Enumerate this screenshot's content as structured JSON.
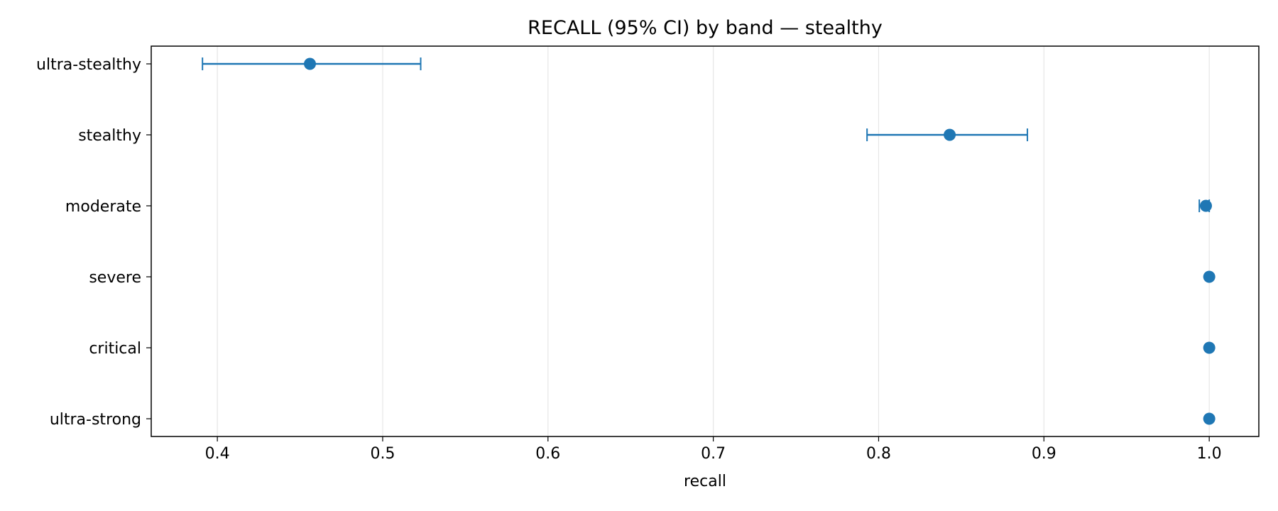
{
  "chart_data": {
    "type": "scatter",
    "title": "RECALL (95% CI) by band — stealthy",
    "xlabel": "recall",
    "ylabel": "",
    "xlim": [
      0.36,
      1.03
    ],
    "xticks": [
      0.4,
      0.5,
      0.6,
      0.7,
      0.8,
      0.9,
      1.0
    ],
    "xtick_labels": [
      "0.4",
      "0.5",
      "0.6",
      "0.7",
      "0.8",
      "0.9",
      "1.0"
    ],
    "grid": "vertical",
    "legend": "none",
    "color": "#1f77b4",
    "categories": [
      "ultra-stealthy",
      "stealthy",
      "moderate",
      "severe",
      "critical",
      "ultra-strong"
    ],
    "points": [
      {
        "band": "ultra-stealthy",
        "value": 0.456,
        "ci_low": 0.391,
        "ci_high": 0.523
      },
      {
        "band": "stealthy",
        "value": 0.843,
        "ci_low": 0.793,
        "ci_high": 0.89
      },
      {
        "band": "moderate",
        "value": 0.998,
        "ci_low": 0.994,
        "ci_high": 1.0
      },
      {
        "band": "severe",
        "value": 1.0,
        "ci_low": 1.0,
        "ci_high": 1.0
      },
      {
        "band": "critical",
        "value": 1.0,
        "ci_low": 1.0,
        "ci_high": 1.0
      },
      {
        "band": "ultra-strong",
        "value": 1.0,
        "ci_low": 1.0,
        "ci_high": 1.0
      }
    ]
  }
}
